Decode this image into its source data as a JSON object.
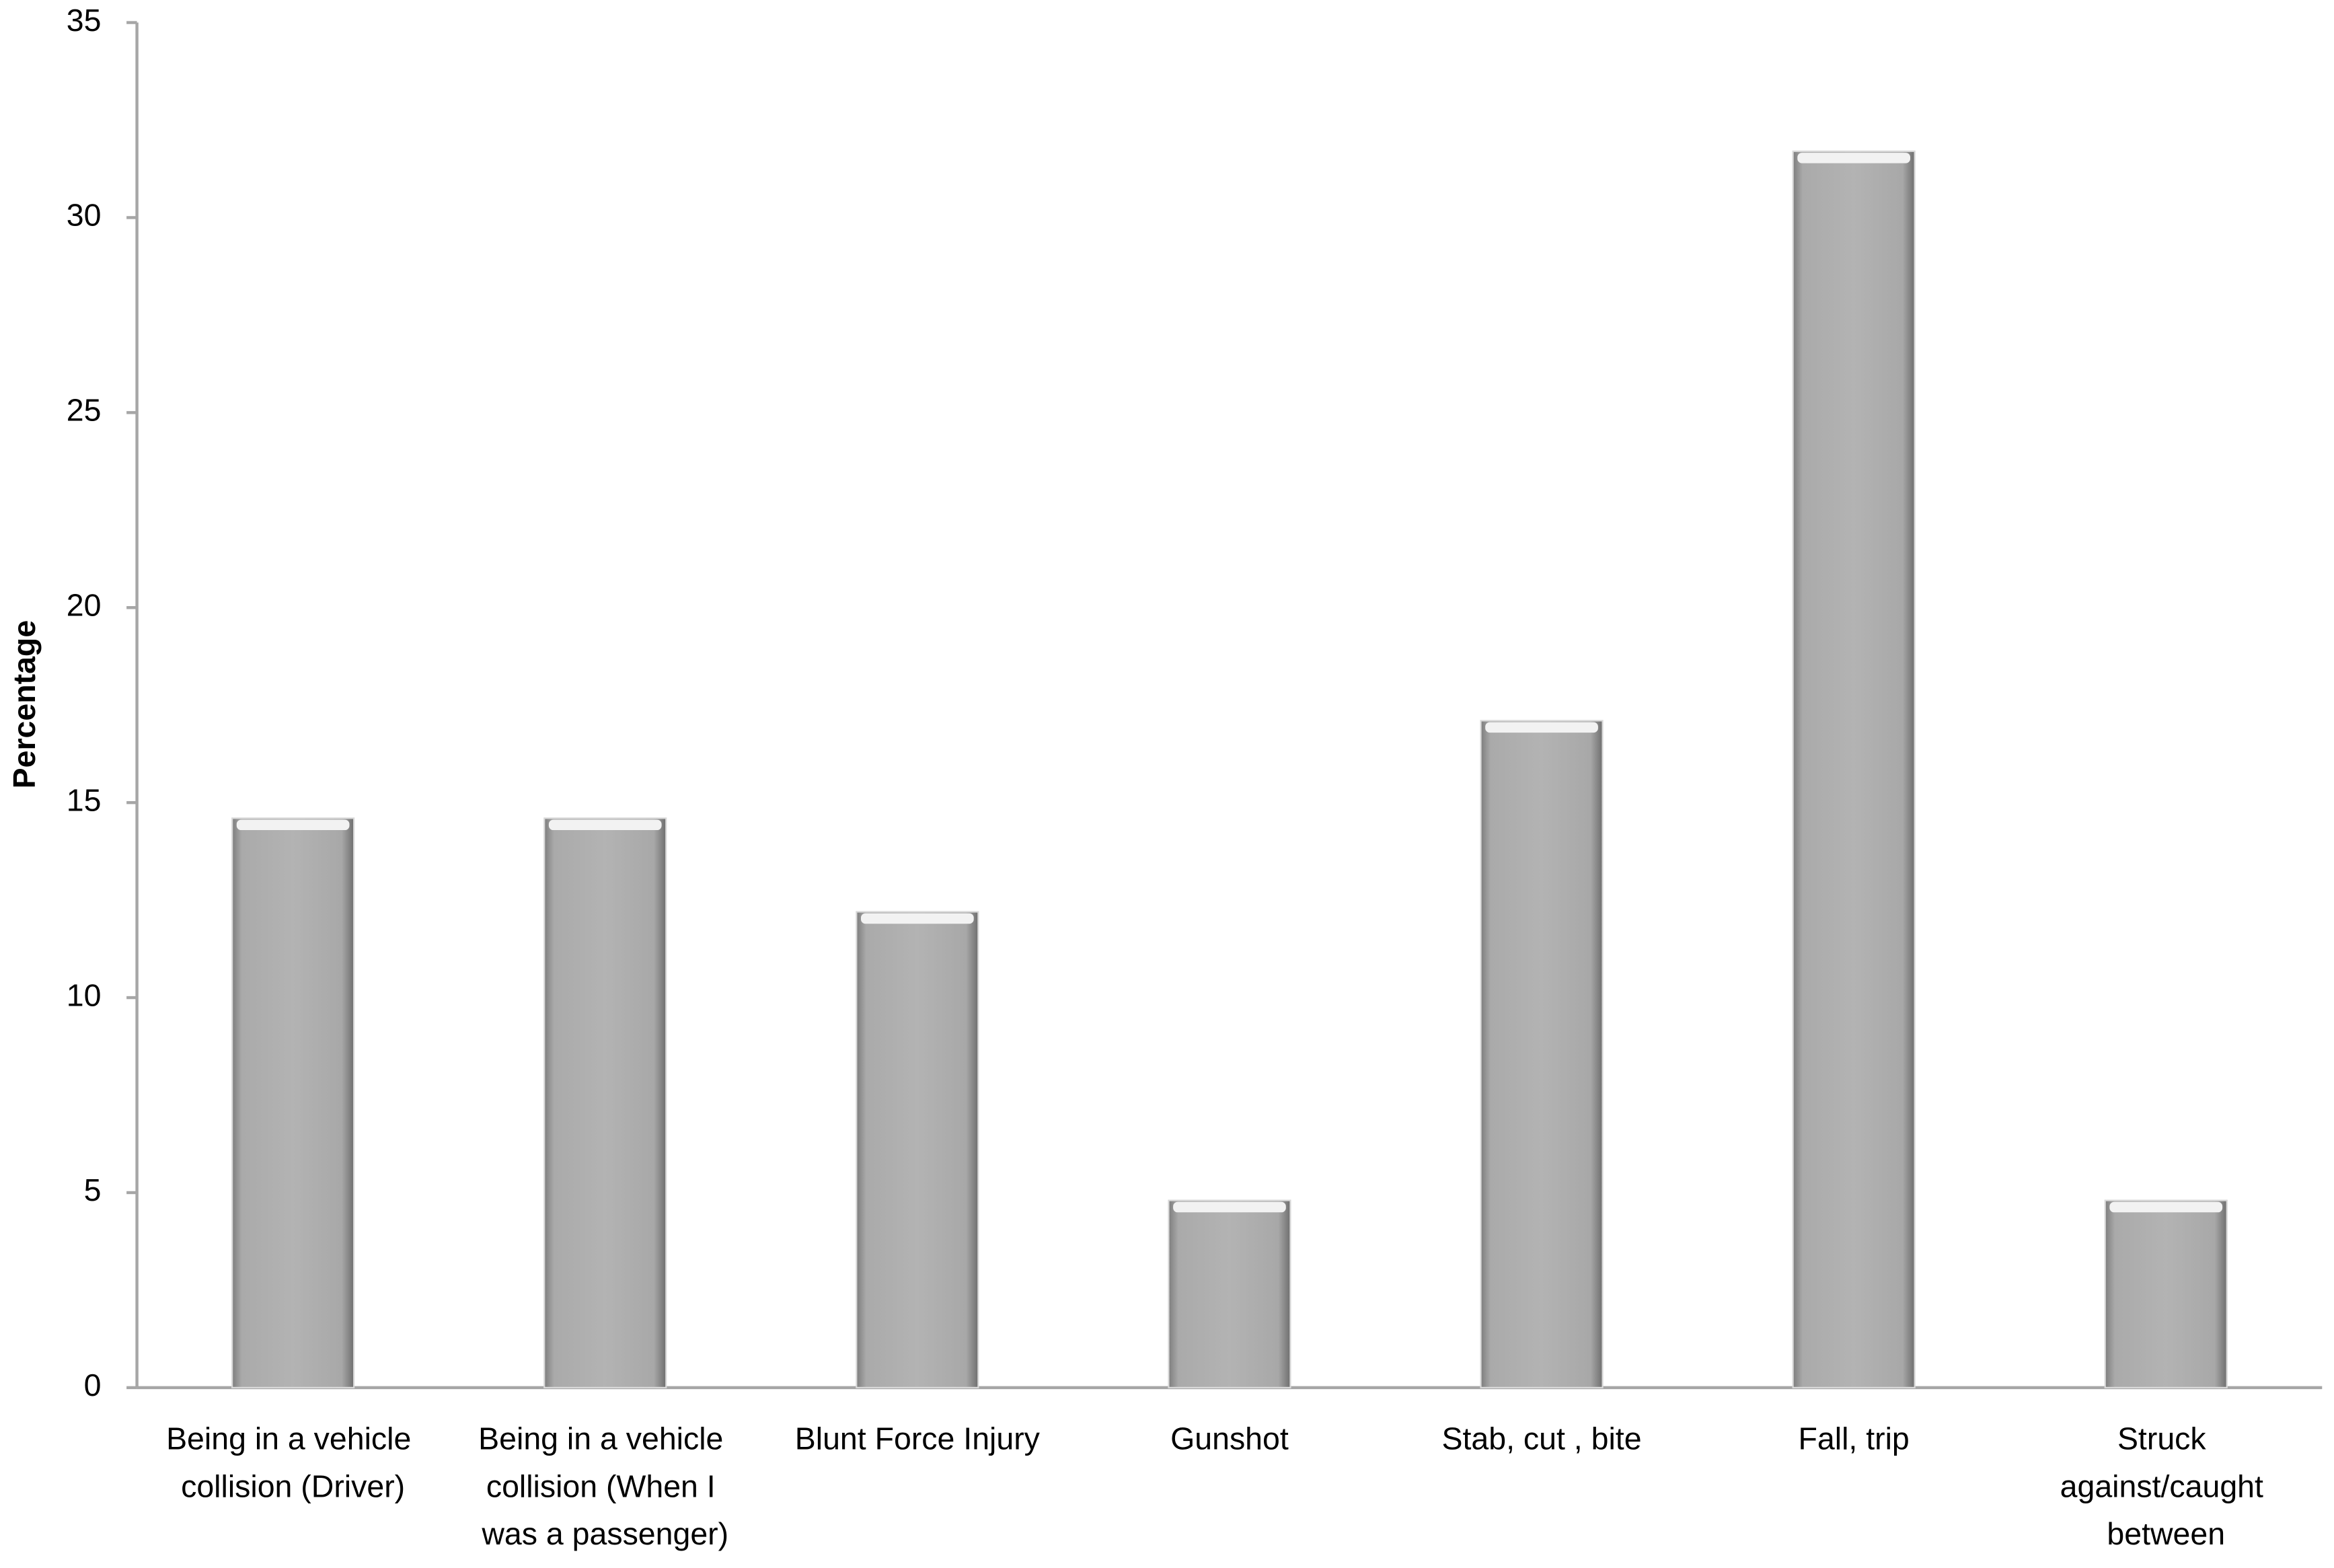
{
  "chart_data": {
    "type": "bar",
    "y_label": "Percentage",
    "categories": [
      "Being in a vehicle collision (Driver)",
      "Being in a vehicle collision (When I was a passenger)",
      "Blunt Force Injury",
      "Gunshot",
      "Stab, cut , bite",
      "Fall, trip",
      "Struck against/caught between"
    ],
    "values": [
      14.6,
      14.6,
      12.2,
      4.8,
      17.1,
      31.7,
      4.8
    ],
    "color": "#b0b0b0",
    "ylim": [
      0,
      35
    ],
    "yticks": [
      0,
      5,
      10,
      15,
      20,
      25,
      30,
      35
    ],
    "grid": false
  }
}
